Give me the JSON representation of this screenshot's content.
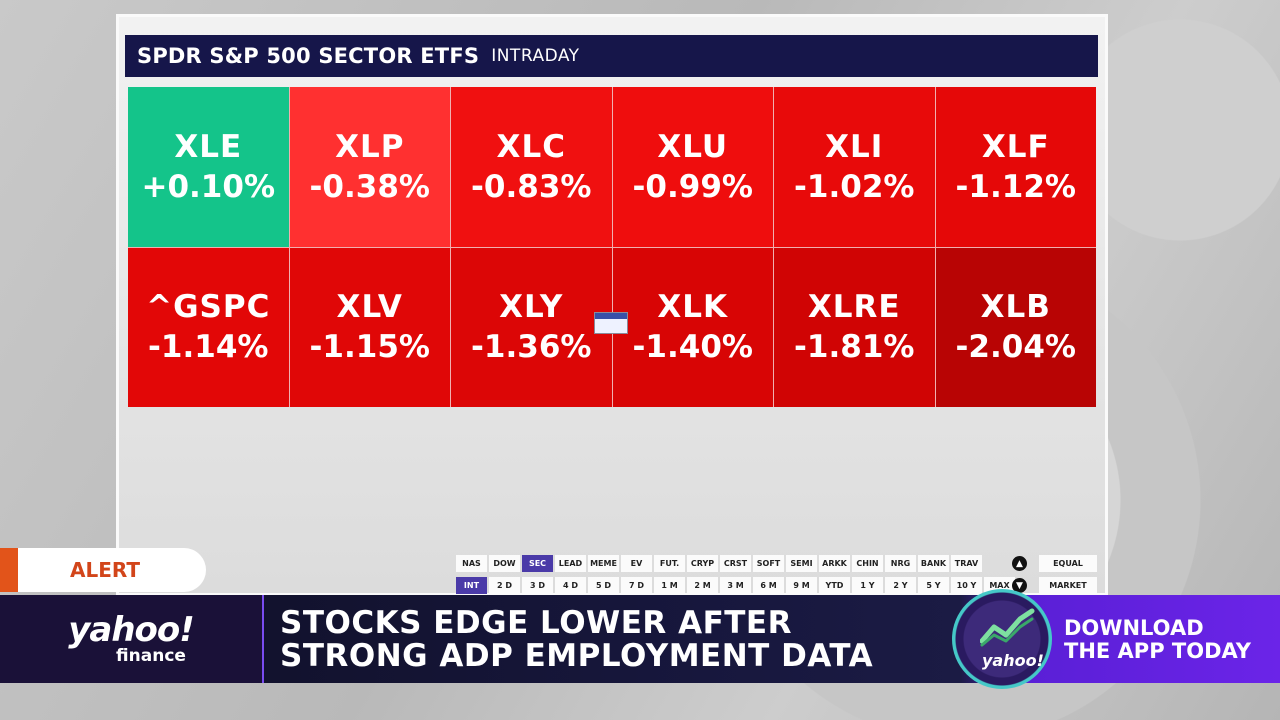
{
  "screen": {
    "title": "SPDR S&P 500 SECTOR ETFS",
    "subtitle": "INTRADAY"
  },
  "tiles": [
    {
      "symbol": "XLE",
      "change": "+0.10%",
      "color": "#14c48a"
    },
    {
      "symbol": "XLP",
      "change": "-0.38%",
      "color": "#ff3030"
    },
    {
      "symbol": "XLC",
      "change": "-0.83%",
      "color": "#f01010"
    },
    {
      "symbol": "XLU",
      "change": "-0.99%",
      "color": "#ef0d0d"
    },
    {
      "symbol": "XLI",
      "change": "-1.02%",
      "color": "#e80a0a"
    },
    {
      "symbol": "XLF",
      "change": "-1.12%",
      "color": "#e50808"
    },
    {
      "symbol": "^GSPC",
      "change": "-1.14%",
      "color": "#e20707"
    },
    {
      "symbol": "XLV",
      "change": "-1.15%",
      "color": "#e00707"
    },
    {
      "symbol": "XLY",
      "change": "-1.36%",
      "color": "#dc0606"
    },
    {
      "symbol": "XLK",
      "change": "-1.40%",
      "color": "#d80505"
    },
    {
      "symbol": "XLRE",
      "change": "-1.81%",
      "color": "#d00404"
    },
    {
      "symbol": "XLB",
      "change": "-2.04%",
      "color": "#b80404"
    }
  ],
  "category_tabs": [
    "NAS",
    "DOW",
    "SEC",
    "LEAD",
    "MEME",
    "EV",
    "FUT.",
    "CRYP",
    "CRST",
    "SOFT",
    "SEMI",
    "ARKK",
    "CHIN",
    "NRG",
    "BANK",
    "TRAV"
  ],
  "active_category": "SEC",
  "range_tabs": [
    "INT",
    "2 D",
    "3 D",
    "4 D",
    "5 D",
    "7 D",
    "1 M",
    "2 M",
    "3 M",
    "6 M",
    "9 M",
    "YTD",
    "1 Y",
    "2 Y",
    "5 Y",
    "10 Y",
    "MAX"
  ],
  "active_range": "INT",
  "mode_buttons": {
    "equal": "EQUAL",
    "market": "MARKET"
  },
  "alert": "ALERT",
  "brand": {
    "main": "yahoo!",
    "sub": "finance",
    "app_logo": "yahoo!"
  },
  "headline": {
    "line1": "STOCKS EDGE LOWER AFTER",
    "line2": "STRONG ADP EMPLOYMENT DATA"
  },
  "promo": {
    "line1": "DOWNLOAD",
    "line2": "THE APP TODAY"
  }
}
